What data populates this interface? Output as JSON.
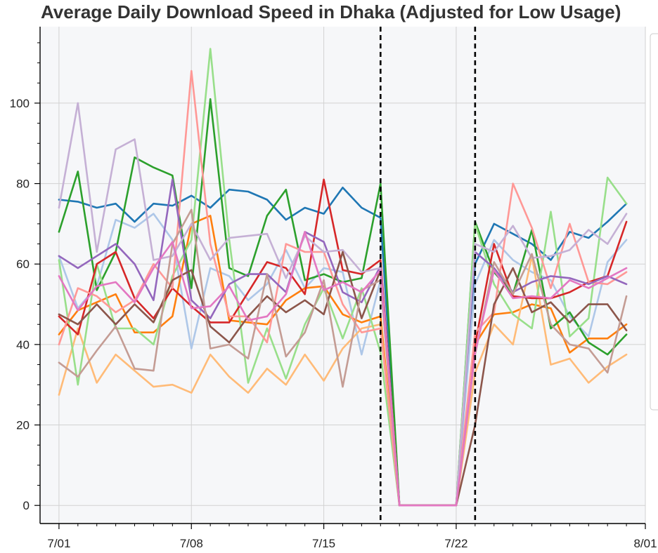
{
  "chart_data": {
    "type": "line",
    "title": "Average Daily Download Speed in Dhaka (Adjusted for Low Usage)",
    "xlabel": "",
    "ylabel": "",
    "x_type": "date",
    "x_tick_labels": [
      "7/01",
      "7/08",
      "7/15",
      "7/22",
      "8/01"
    ],
    "x_tick_dates": [
      "2022-07-01",
      "2022-07-08",
      "2022-07-15",
      "2022-07-22",
      "2022-08-01"
    ],
    "x_range": [
      "2022-06-30",
      "2022-08-01"
    ],
    "ylim": [
      -4.5,
      119
    ],
    "y_ticks": [
      0,
      20,
      40,
      60,
      80,
      100
    ],
    "y_minor_step": 5,
    "grid": true,
    "markers": [
      {
        "date": "2022-07-18",
        "style": "dashed",
        "color": "#000000"
      },
      {
        "date": "2022-07-23",
        "style": "dashed",
        "color": "#000000"
      }
    ],
    "legend": {
      "placement": "right",
      "entries": []
    },
    "x": [
      "2022-07-01",
      "2022-07-02",
      "2022-07-03",
      "2022-07-04",
      "2022-07-05",
      "2022-07-06",
      "2022-07-07",
      "2022-07-08",
      "2022-07-09",
      "2022-07-10",
      "2022-07-11",
      "2022-07-12",
      "2022-07-13",
      "2022-07-14",
      "2022-07-15",
      "2022-07-16",
      "2022-07-17",
      "2022-07-18",
      "2022-07-19",
      "2022-07-20",
      "2022-07-21",
      "2022-07-22",
      "2022-07-23",
      "2022-07-24",
      "2022-07-25",
      "2022-07-26",
      "2022-07-27",
      "2022-07-28",
      "2022-07-29",
      "2022-07-30",
      "2022-07-31"
    ],
    "series": [
      {
        "color": "#1f77b4",
        "values": [
          76,
          75.5,
          74,
          75,
          70.5,
          75,
          74.5,
          77,
          74,
          78.5,
          78,
          76,
          71,
          74,
          72.5,
          79,
          74,
          71.5,
          0,
          0,
          0,
          0,
          60,
          70,
          67.5,
          65,
          61,
          68,
          66.5,
          70.5,
          75
        ]
      },
      {
        "color": "#aec7e8",
        "values": [
          62,
          49,
          54.5,
          71,
          69,
          72.5,
          66,
          39,
          59,
          57,
          51,
          55,
          63.5,
          54,
          59,
          58,
          37.5,
          56,
          0,
          0,
          0,
          0,
          55,
          66,
          61,
          58,
          56,
          47,
          42,
          60.5,
          66
        ]
      },
      {
        "color": "#ff7f0e",
        "values": [
          42.5,
          48.5,
          50.5,
          52.5,
          43,
          43,
          47,
          70,
          72,
          46,
          45.5,
          45,
          51,
          54,
          54.5,
          47.5,
          45.5,
          47,
          0,
          0,
          0,
          0,
          40,
          47.5,
          48,
          50,
          49,
          38,
          41.5,
          41.5,
          45
        ]
      },
      {
        "color": "#ffbb78",
        "values": [
          27.5,
          44,
          30.5,
          37.5,
          33.5,
          29.5,
          30,
          28,
          37.5,
          32,
          28,
          34,
          30,
          37.5,
          31,
          39,
          44,
          45,
          0,
          0,
          0,
          0,
          33,
          45,
          40,
          62,
          35,
          36.5,
          30.5,
          34.5,
          37.5
        ]
      },
      {
        "color": "#2ca02c",
        "values": [
          68,
          83,
          53.5,
          63,
          86.5,
          84,
          82,
          54,
          101,
          59,
          57,
          72,
          78.5,
          56,
          57.5,
          55.5,
          56.5,
          80,
          0,
          0,
          0,
          0,
          70.5,
          58,
          52.5,
          68.5,
          44,
          48,
          40.5,
          37.5,
          42.5
        ]
      },
      {
        "color": "#98df8a",
        "values": [
          61,
          30,
          60,
          44,
          44,
          40,
          57,
          66,
          113.5,
          66,
          30.5,
          44,
          31.5,
          45,
          54,
          41.5,
          54,
          38,
          0,
          0,
          0,
          0,
          70,
          55,
          47.5,
          44,
          73,
          42,
          46.5,
          81.5,
          75
        ]
      },
      {
        "color": "#d62728",
        "values": [
          47,
          42.5,
          60,
          63,
          51.5,
          46.5,
          54,
          49.5,
          45.5,
          45.5,
          53,
          60.5,
          59,
          52.5,
          81,
          58.5,
          57.5,
          61,
          0,
          0,
          0,
          0,
          40,
          65,
          52,
          51.5,
          51.5,
          53,
          55.5,
          57,
          70.5
        ]
      },
      {
        "color": "#ff9896",
        "values": [
          40,
          54,
          52,
          48,
          51,
          60,
          54,
          108,
          65,
          47,
          47,
          40.5,
          65,
          63,
          63,
          50,
          43,
          44,
          0,
          0,
          0,
          0,
          43,
          48,
          80,
          69,
          54,
          70,
          55.5,
          55,
          58
        ]
      },
      {
        "color": "#9467bd",
        "values": [
          62,
          59,
          62,
          65,
          60,
          51,
          81,
          51,
          46.5,
          55,
          57.5,
          57.5,
          53,
          68,
          65.5,
          53,
          50.5,
          59.5,
          0,
          0,
          0,
          0,
          63,
          59,
          53,
          55.5,
          57,
          56.5,
          55,
          57,
          55
        ]
      },
      {
        "color": "#c5b0d5",
        "values": [
          74,
          100,
          63,
          88.5,
          91,
          61,
          62,
          70,
          61,
          66.5,
          67,
          67.5,
          56.5,
          67,
          63,
          63.5,
          58,
          59,
          0,
          0,
          0,
          0,
          65,
          63,
          69.5,
          61.5,
          62,
          63.5,
          68.5,
          65,
          72.5
        ]
      },
      {
        "color": "#8c564b",
        "values": [
          47.5,
          45,
          50,
          45,
          50,
          45.5,
          56,
          58.5,
          44.5,
          40.5,
          47,
          52,
          48,
          51,
          47.5,
          63,
          46.5,
          58.5,
          0,
          0,
          0,
          0,
          20,
          50,
          59,
          48,
          50.5,
          45.5,
          50,
          50,
          43.5
        ]
      },
      {
        "color": "#c49c94",
        "values": [
          35.5,
          32,
          38.5,
          44.5,
          34,
          33.5,
          65,
          73.5,
          39,
          40,
          36.5,
          57.5,
          37,
          43,
          56,
          29.5,
          53.5,
          56,
          0,
          0,
          0,
          0,
          37.5,
          60.5,
          52.5,
          62.5,
          45,
          40,
          39,
          33,
          52
        ]
      },
      {
        "color": "#e377c2",
        "values": [
          57,
          48.5,
          54.5,
          55.5,
          50.5,
          59,
          65.5,
          49,
          49.5,
          54.5,
          46,
          47,
          52.5,
          68,
          53.5,
          55.5,
          53,
          58.5,
          0,
          0,
          0,
          0,
          38,
          58.5,
          51.5,
          52,
          51.5,
          56,
          54,
          56.5,
          59
        ]
      }
    ]
  }
}
